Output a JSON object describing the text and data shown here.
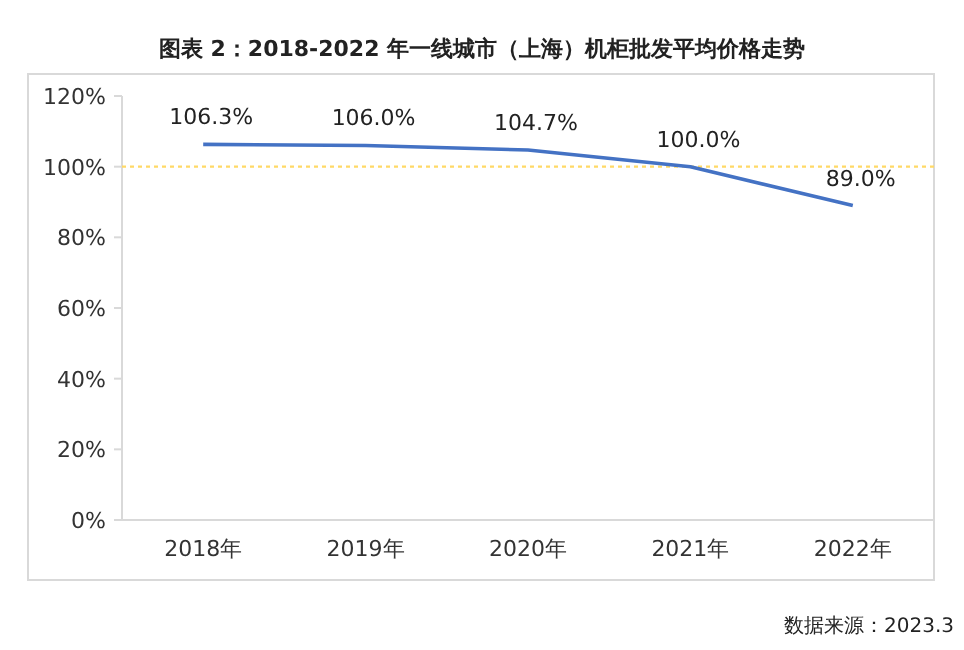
{
  "chart_data": {
    "type": "line",
    "title": "图表 2：2018-2022 年一线城市（上海）机柜批发平均价格走势",
    "categories": [
      "2018年",
      "2019年",
      "2020年",
      "2021年",
      "2022年"
    ],
    "series": [
      {
        "color": "#4472c4",
        "values": [
          106.3,
          106.0,
          104.7,
          100.0,
          89.0
        ],
        "value_labels": [
          "106.3%",
          "106.0%",
          "104.7%",
          "100.0%",
          "89.0%"
        ]
      }
    ],
    "ylim": [
      0,
      120
    ],
    "yticks": [
      {
        "value": 0,
        "label": "0%"
      },
      {
        "value": 20,
        "label": "20%"
      },
      {
        "value": 40,
        "label": "40%"
      },
      {
        "value": 60,
        "label": "60%"
      },
      {
        "value": 80,
        "label": "80%"
      },
      {
        "value": 100,
        "label": "100%"
      },
      {
        "value": 120,
        "label": "120%"
      }
    ],
    "ref_lines": [
      {
        "axis": "y",
        "value": 100,
        "color": "#ffd966",
        "line_style": "dotted"
      }
    ],
    "grid": false,
    "marker": "none",
    "line_style": "solid",
    "annotations": [
      "数据来源：2023.3"
    ]
  }
}
